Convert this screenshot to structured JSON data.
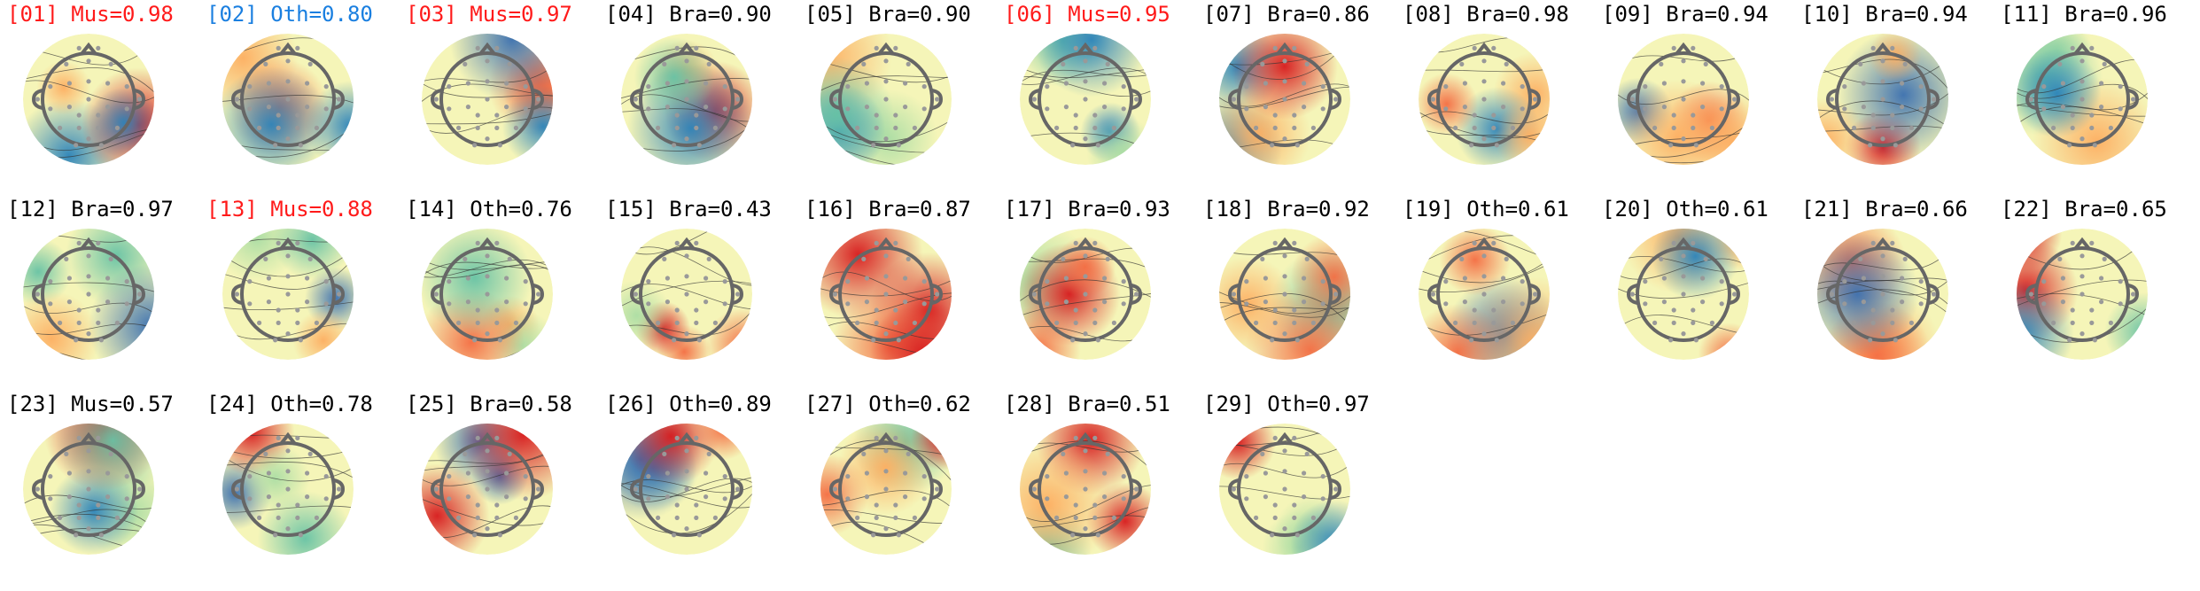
{
  "colors": {
    "rejected_muscle": "#ff1a1a",
    "rejected_other": "#1a7fe0",
    "kept": "#000000"
  },
  "components": [
    {
      "label": "[01] Mus=0.98",
      "status": "rejected_muscle",
      "seed": 1
    },
    {
      "label": "[02] Oth=0.80",
      "status": "rejected_other",
      "seed": 2
    },
    {
      "label": "[03] Mus=0.97",
      "status": "rejected_muscle",
      "seed": 3
    },
    {
      "label": "[04] Bra=0.90",
      "status": "kept",
      "seed": 4
    },
    {
      "label": "[05] Bra=0.90",
      "status": "kept",
      "seed": 5
    },
    {
      "label": "[06] Mus=0.95",
      "status": "rejected_muscle",
      "seed": 6
    },
    {
      "label": "[07] Bra=0.86",
      "status": "kept",
      "seed": 7
    },
    {
      "label": "[08] Bra=0.98",
      "status": "kept",
      "seed": 8
    },
    {
      "label": "[09] Bra=0.94",
      "status": "kept",
      "seed": 9
    },
    {
      "label": "[10] Bra=0.94",
      "status": "kept",
      "seed": 10
    },
    {
      "label": "[11] Bra=0.96",
      "status": "kept",
      "seed": 11
    },
    {
      "label": "[12] Bra=0.97",
      "status": "kept",
      "seed": 12
    },
    {
      "label": "[13] Mus=0.88",
      "status": "rejected_muscle",
      "seed": 13
    },
    {
      "label": "[14] Oth=0.76",
      "status": "kept",
      "seed": 14
    },
    {
      "label": "[15] Bra=0.43",
      "status": "kept",
      "seed": 15
    },
    {
      "label": "[16] Bra=0.87",
      "status": "kept",
      "seed": 16
    },
    {
      "label": "[17] Bra=0.93",
      "status": "kept",
      "seed": 17
    },
    {
      "label": "[18] Bra=0.92",
      "status": "kept",
      "seed": 18
    },
    {
      "label": "[19] Oth=0.61",
      "status": "kept",
      "seed": 19
    },
    {
      "label": "[20] Oth=0.61",
      "status": "kept",
      "seed": 20
    },
    {
      "label": "[21] Bra=0.66",
      "status": "kept",
      "seed": 21
    },
    {
      "label": "[22] Bra=0.65",
      "status": "kept",
      "seed": 22
    },
    {
      "label": "[23] Mus=0.57",
      "status": "kept",
      "seed": 23
    },
    {
      "label": "[24] Oth=0.78",
      "status": "kept",
      "seed": 24
    },
    {
      "label": "[25] Bra=0.58",
      "status": "kept",
      "seed": 25
    },
    {
      "label": "[26] Oth=0.89",
      "status": "kept",
      "seed": 26
    },
    {
      "label": "[27] Oth=0.62",
      "status": "kept",
      "seed": 27
    },
    {
      "label": "[28] Bra=0.51",
      "status": "kept",
      "seed": 28
    },
    {
      "label": "[29] Oth=0.97",
      "status": "kept",
      "seed": 29
    }
  ]
}
